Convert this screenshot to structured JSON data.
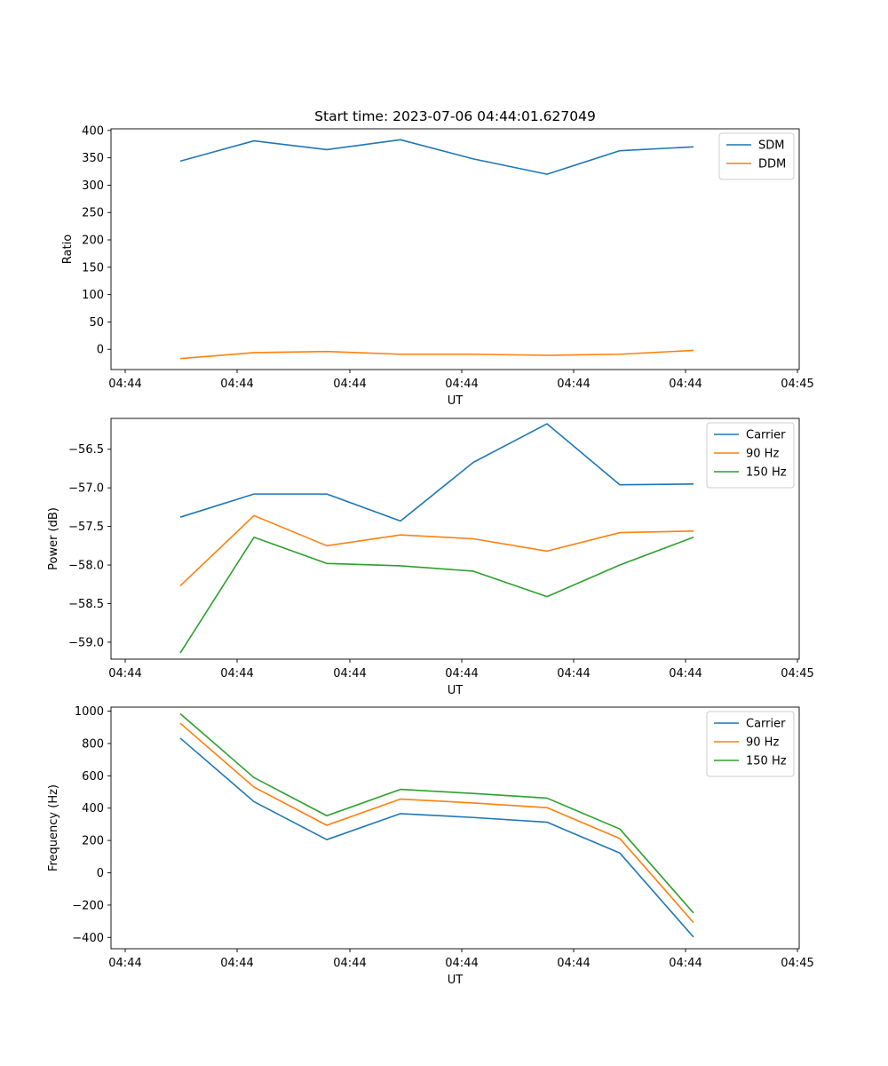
{
  "chart_data": [
    {
      "type": "line",
      "title": "Start time: 2023-07-06 04:44:01.627049",
      "xlabel": "UT",
      "ylabel": "Ratio",
      "xticks": [
        "04:44",
        "04:44",
        "04:44",
        "04:44",
        "04:44",
        "04:44",
        "04:45"
      ],
      "yticks": [
        "0",
        "50",
        "100",
        "150",
        "200",
        "250",
        "300",
        "350",
        "400"
      ],
      "ylim": [
        -37,
        403
      ],
      "x": [
        1,
        2,
        3,
        4,
        5,
        6,
        7,
        8
      ],
      "legend_loc": "upper right",
      "series": [
        {
          "name": "SDM",
          "color": "#1f77b4",
          "values": [
            344,
            381,
            365,
            383,
            348,
            320,
            363,
            370
          ]
        },
        {
          "name": "DDM",
          "color": "#ff7f0e",
          "values": [
            -17,
            -6,
            -4,
            -9,
            -9,
            -11,
            -9,
            -2
          ]
        }
      ]
    },
    {
      "type": "line",
      "title": "",
      "xlabel": "UT",
      "ylabel": "Power (dB)",
      "xticks": [
        "04:44",
        "04:44",
        "04:44",
        "04:44",
        "04:44",
        "04:44",
        "04:45"
      ],
      "yticks": [
        "−59.0",
        "−58.5",
        "−58.0",
        "−57.5",
        "−57.0",
        "−56.5"
      ],
      "ylim": [
        -59.22,
        -56.1
      ],
      "x": [
        1,
        2,
        3,
        4,
        5,
        6,
        7,
        8
      ],
      "legend_loc": "upper right",
      "series": [
        {
          "name": "Carrier",
          "color": "#1f77b4",
          "values": [
            -57.38,
            -57.08,
            -57.08,
            -57.43,
            -56.67,
            -56.17,
            -56.96,
            -56.95
          ]
        },
        {
          "name": "90 Hz",
          "color": "#ff7f0e",
          "values": [
            -58.27,
            -57.36,
            -57.75,
            -57.61,
            -57.66,
            -57.82,
            -57.58,
            -57.56
          ]
        },
        {
          "name": "150 Hz",
          "color": "#2ca02c",
          "values": [
            -59.14,
            -57.64,
            -57.98,
            -58.01,
            -58.08,
            -58.41,
            -58.0,
            -57.64
          ]
        }
      ]
    },
    {
      "type": "line",
      "title": "",
      "xlabel": "UT",
      "ylabel": "Frequency (Hz)",
      "xticks": [
        "04:44",
        "04:44",
        "04:44",
        "04:44",
        "04:44",
        "04:44",
        "04:45"
      ],
      "yticks": [
        "−400",
        "−200",
        "0",
        "200",
        "400",
        "600",
        "800",
        "1000"
      ],
      "ylim": [
        -470,
        1025
      ],
      "x": [
        1,
        2,
        3,
        4,
        5,
        6,
        7,
        8
      ],
      "legend_loc": "upper right",
      "series": [
        {
          "name": "Carrier",
          "color": "#1f77b4",
          "values": [
            833,
            440,
            205,
            366,
            342,
            313,
            122,
            -398
          ]
        },
        {
          "name": "90 Hz",
          "color": "#ff7f0e",
          "values": [
            925,
            530,
            294,
            456,
            432,
            403,
            212,
            -308
          ]
        },
        {
          "name": "150 Hz",
          "color": "#2ca02c",
          "values": [
            984,
            589,
            353,
            516,
            491,
            462,
            271,
            -249
          ]
        }
      ]
    }
  ]
}
